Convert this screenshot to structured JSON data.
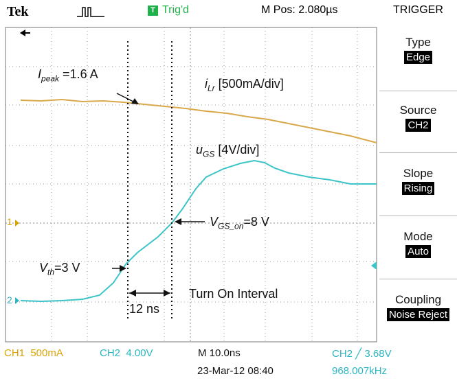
{
  "header": {
    "brand": "Tek",
    "trigger_badge": "T",
    "trigger_status": "Trig'd",
    "m_pos": "M Pos: 2.080µs",
    "menu_title": "TRIGGER"
  },
  "menu": [
    {
      "label": "Type",
      "value": "Edge"
    },
    {
      "label": "Source",
      "value": "CH2"
    },
    {
      "label": "Slope",
      "value": "Rising"
    },
    {
      "label": "Mode",
      "value": "Auto"
    },
    {
      "label": "Coupling",
      "value": "Noise Reject"
    }
  ],
  "status": {
    "ch1": "CH1  500mA",
    "ch2": "CH2  4.00V",
    "timebase": "M 10.0ns",
    "datetime": "23-Mar-12 08:40",
    "trigger": "CH2 ╱ 3.68V",
    "frequency": "968.007kHz"
  },
  "markers": {
    "ch1": "1",
    "ch2": "2"
  },
  "annotations": {
    "ipeak_sym": "I",
    "ipeak_sub": "peak",
    "ipeak_val": " =1.6 A",
    "ilr_sym": "i",
    "ilr_sub": "Lr",
    "ilr_val": " [500mA/div]",
    "ugs_sym": "u",
    "ugs_sub": "GS",
    "ugs_val": " [4V/div]",
    "vgson_sym": "V",
    "vgson_sub": "GS_on",
    "vgson_val": "=8 V",
    "vth_sym": "V",
    "vth_sub": "th",
    "vth_val": "=3 V",
    "interval_ns": "12 ns",
    "interval_label": "Turn On Interval"
  },
  "colors": {
    "ch1_trace": "#d9a84a",
    "ch2_trace": "#3cc4c8",
    "grid": "#9a9a9a"
  }
}
